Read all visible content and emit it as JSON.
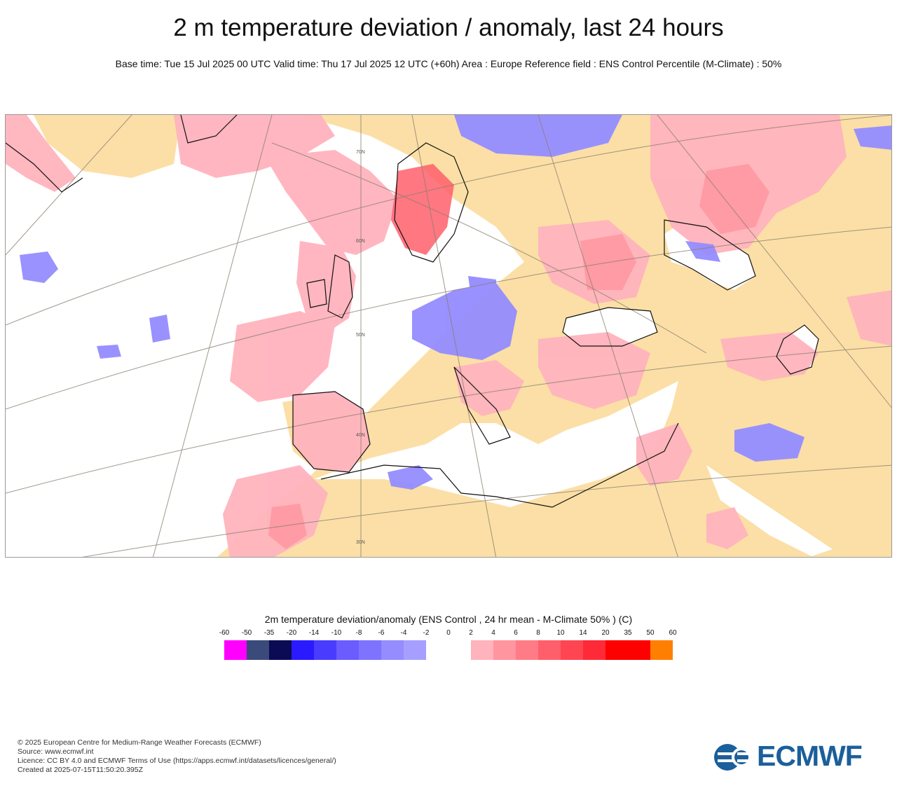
{
  "header": {
    "title": "2 m temperature deviation / anomaly, last 24 hours",
    "subtitle": "Base time: Tue 15 Jul 2025 00 UTC Valid time: Thu 17 Jul 2025 12 UTC (+60h) Area : Europe Reference field : ENS Control Percentile (M-Climate) : 50%"
  },
  "map": {
    "region": "Europe",
    "latitude_labels": [
      "70N",
      "60N",
      "50N",
      "40N",
      "30N"
    ]
  },
  "legend": {
    "title": "2m temperature deviation/anomaly (ENS Control , 24 hr mean - M-Climate 50% ) (C)",
    "ticks": [
      "-60",
      "-50",
      "-35",
      "-20",
      "-14",
      "-10",
      "-8",
      "-6",
      "-4",
      "-2",
      "0",
      "2",
      "4",
      "6",
      "8",
      "10",
      "14",
      "20",
      "35",
      "50",
      "60"
    ],
    "colors": [
      "#ff00ff",
      "#3a4a7a",
      "#0b0a55",
      "#2a1aff",
      "#4a3cff",
      "#6a5cff",
      "#7d73ff",
      "#948cff",
      "#a79fff",
      "#ffffff",
      "#ffffff",
      "#ffb3bd",
      "#ff959f",
      "#ff7b85",
      "#ff5f6b",
      "#ff4552",
      "#ff2a38",
      "#ff0000",
      "#ff0000",
      "#ff7f00"
    ]
  },
  "footer": {
    "copyright": "© 2025 European Centre for Medium-Range Weather Forecasts (ECMWF)",
    "source": "Source: www.ecmwf.int",
    "licence": "Licence: CC BY 4.0 and ECMWF Terms of Use (https://apps.ecmwf.int/datasets/licences/general/)",
    "created": "Created at 2025-07-15T11:50:20.395Z"
  },
  "logo": {
    "text": "ECMWF",
    "color": "#1b5f9b"
  }
}
